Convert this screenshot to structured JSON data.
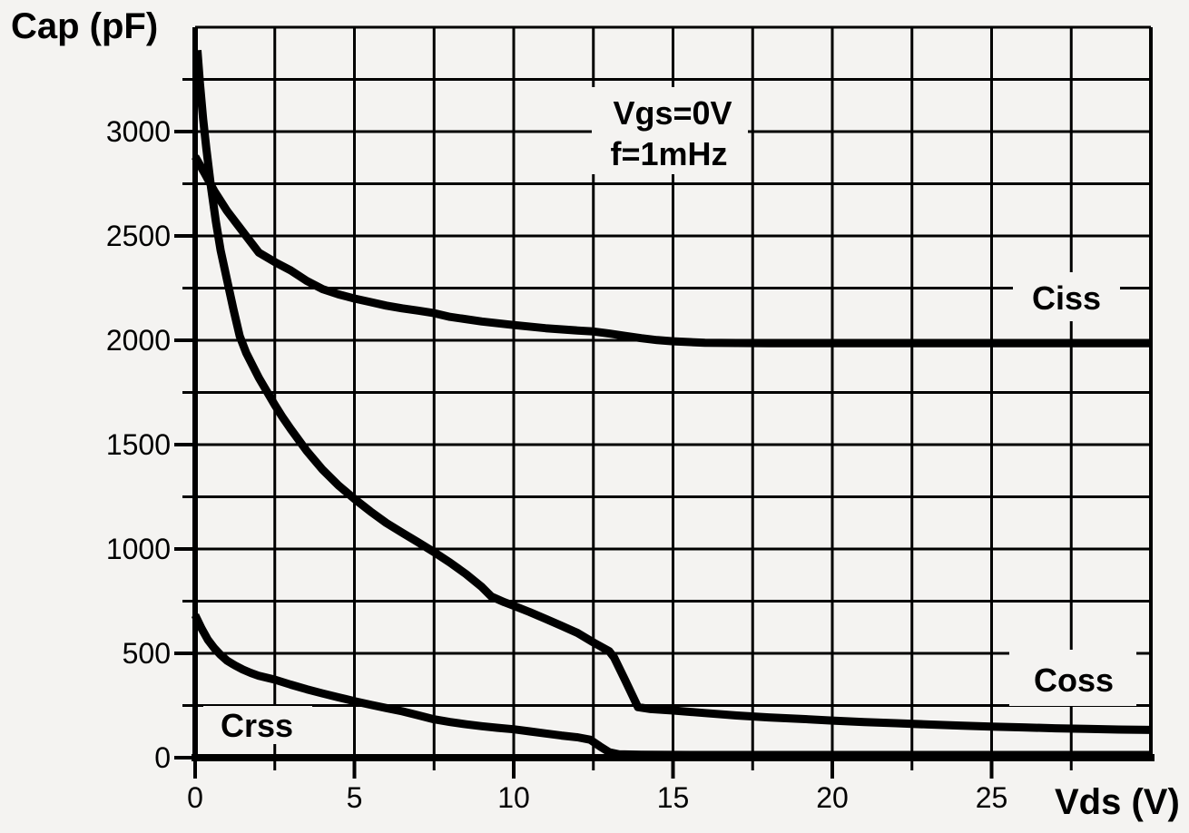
{
  "colors": {
    "background": "#f4f3f1",
    "line": "#000000",
    "grid": "#000000",
    "text": "#000000"
  },
  "chart": {
    "y_axis_title": "Cap (pF)",
    "x_axis_title": "Vds (V)",
    "annotation_line1": "Vgs=0V",
    "annotation_line2": "f=1mHz"
  },
  "chart_data": {
    "type": "line",
    "title": "",
    "xlabel": "Vds (V)",
    "ylabel": "Cap (pF)",
    "xlim": [
      0,
      30
    ],
    "ylim": [
      0,
      3500
    ],
    "grid": true,
    "x_grid_step": 2.5,
    "y_grid_step": 250,
    "x_tick_labels": [
      0,
      5,
      10,
      15,
      20,
      25
    ],
    "y_tick_labels": [
      0,
      500,
      1000,
      1500,
      2000,
      2500,
      3000
    ],
    "annotations": [
      "Vgs=0V",
      "f=1mHz"
    ],
    "series": [
      {
        "name": "Ciss",
        "points": [
          [
            0,
            2880
          ],
          [
            0.3,
            2800
          ],
          [
            0.6,
            2715
          ],
          [
            1,
            2620
          ],
          [
            1.5,
            2520
          ],
          [
            2,
            2420
          ],
          [
            2.5,
            2375
          ],
          [
            3,
            2335
          ],
          [
            3.5,
            2285
          ],
          [
            4,
            2245
          ],
          [
            4.5,
            2220
          ],
          [
            5,
            2200
          ],
          [
            5.5,
            2183
          ],
          [
            6,
            2166
          ],
          [
            6.5,
            2153
          ],
          [
            7,
            2142
          ],
          [
            7.5,
            2130
          ],
          [
            8,
            2112
          ],
          [
            9,
            2090
          ],
          [
            10,
            2073
          ],
          [
            11,
            2058
          ],
          [
            12,
            2047
          ],
          [
            12.5,
            2042
          ],
          [
            13,
            2032
          ],
          [
            13.5,
            2021
          ],
          [
            14,
            2010
          ],
          [
            14.5,
            2001
          ],
          [
            15,
            1995
          ],
          [
            16,
            1988
          ],
          [
            18,
            1986
          ],
          [
            20,
            1986
          ],
          [
            25,
            1986
          ],
          [
            30,
            1986
          ]
        ]
      },
      {
        "name": "Coss",
        "points": [
          [
            0.07,
            3390
          ],
          [
            0.15,
            3230
          ],
          [
            0.25,
            3060
          ],
          [
            0.35,
            2920
          ],
          [
            0.5,
            2730
          ],
          [
            0.65,
            2570
          ],
          [
            0.8,
            2430
          ],
          [
            1,
            2290
          ],
          [
            1.2,
            2150
          ],
          [
            1.4,
            2020
          ],
          [
            1.6,
            1940
          ],
          [
            1.8,
            1880
          ],
          [
            2,
            1820
          ],
          [
            2.25,
            1755
          ],
          [
            2.5,
            1690
          ],
          [
            2.75,
            1630
          ],
          [
            3,
            1575
          ],
          [
            3.5,
            1470
          ],
          [
            4,
            1380
          ],
          [
            4.5,
            1305
          ],
          [
            5,
            1240
          ],
          [
            5.5,
            1180
          ],
          [
            6,
            1125
          ],
          [
            6.5,
            1078
          ],
          [
            7,
            1032
          ],
          [
            7.5,
            985
          ],
          [
            8,
            935
          ],
          [
            8.5,
            880
          ],
          [
            9,
            818
          ],
          [
            9.3,
            772
          ],
          [
            9.7,
            745
          ],
          [
            10,
            728
          ],
          [
            10.5,
            698
          ],
          [
            11,
            665
          ],
          [
            11.5,
            632
          ],
          [
            12,
            598
          ],
          [
            12.5,
            552
          ],
          [
            13,
            510
          ],
          [
            13.15,
            480
          ],
          [
            13.5,
            370
          ],
          [
            13.9,
            242
          ],
          [
            14.3,
            233
          ],
          [
            15,
            226
          ],
          [
            16,
            214
          ],
          [
            17,
            202
          ],
          [
            18,
            193
          ],
          [
            19,
            186
          ],
          [
            20,
            178
          ],
          [
            21,
            171
          ],
          [
            22,
            165
          ],
          [
            23,
            159
          ],
          [
            24,
            154
          ],
          [
            25,
            149
          ],
          [
            26,
            145
          ],
          [
            27,
            141
          ],
          [
            28,
            138
          ],
          [
            29,
            135
          ],
          [
            30,
            133
          ]
        ]
      },
      {
        "name": "Crss",
        "points": [
          [
            0,
            683
          ],
          [
            0.2,
            620
          ],
          [
            0.4,
            565
          ],
          [
            0.6,
            525
          ],
          [
            0.8,
            492
          ],
          [
            1,
            465
          ],
          [
            1.25,
            442
          ],
          [
            1.5,
            422
          ],
          [
            1.75,
            406
          ],
          [
            2,
            392
          ],
          [
            2.5,
            374
          ],
          [
            3,
            350
          ],
          [
            3.5,
            328
          ],
          [
            4,
            308
          ],
          [
            4.5,
            289
          ],
          [
            5,
            271
          ],
          [
            5.5,
            254
          ],
          [
            6,
            238
          ],
          [
            6.5,
            222
          ],
          [
            7,
            203
          ],
          [
            7.5,
            184
          ],
          [
            8,
            171
          ],
          [
            8.5,
            160
          ],
          [
            9,
            151
          ],
          [
            9.5,
            143
          ],
          [
            10,
            136
          ],
          [
            10.5,
            126
          ],
          [
            11,
            116
          ],
          [
            11.5,
            106
          ],
          [
            12,
            98
          ],
          [
            12.4,
            86
          ],
          [
            12.7,
            55
          ],
          [
            13,
            26
          ],
          [
            13.3,
            16
          ],
          [
            14,
            14
          ],
          [
            16,
            13
          ],
          [
            20,
            13
          ],
          [
            25,
            13
          ],
          [
            30,
            13
          ]
        ]
      }
    ],
    "legend_position": "on-curve-labels",
    "line_color": "#000000"
  }
}
